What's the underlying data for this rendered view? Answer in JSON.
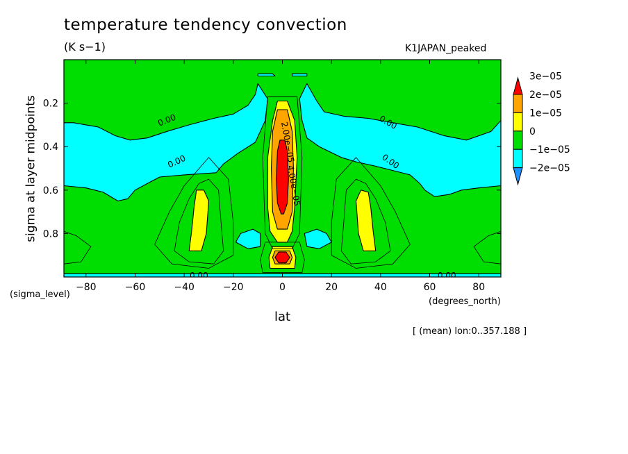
{
  "title": "temperature tendency convection",
  "units": "(K s−1)",
  "run_name": "K1JAPAN_peaked",
  "footer": "[ (mean) lon:0..357.188 ]",
  "chart_data": {
    "type": "heatmap",
    "subtype": "filled-contour",
    "title": "temperature tendency convection",
    "xlabel": "lat",
    "x_unit_label": "(degrees_north)",
    "ylabel": "sigma at layer midpoints",
    "y_unit_label": "(sigma_level)",
    "xlim": [
      -89,
      89
    ],
    "ylim": [
      1.0,
      0.0
    ],
    "y_inverted": true,
    "x_ticks": [
      -80,
      -60,
      -40,
      -20,
      0,
      20,
      40,
      60,
      80
    ],
    "x_tick_labels": [
      "−80",
      "−60",
      "−40",
      "−20",
      "0",
      "20",
      "40",
      "60",
      "80"
    ],
    "y_ticks": [
      0.2,
      0.4,
      0.6,
      0.8
    ],
    "y_tick_labels": [
      "0.2",
      "0.4",
      "0.6",
      "0.8"
    ],
    "colorbar": {
      "levels": [
        -2e-05,
        -1e-05,
        0,
        1e-05,
        2e-05,
        3e-05
      ],
      "labels": [
        "−2e−05",
        "−1e−05",
        "0",
        "1e−05",
        "2e−05",
        "3e−05"
      ],
      "colors": [
        "#1e90ff",
        "#00ffff",
        "#00dd00",
        "#ffff00",
        "#ffa500",
        "#ff0000"
      ],
      "extend": "both"
    },
    "contour_labels": [
      "0.00",
      "0.00",
      "0.00",
      "0.00",
      "0.00",
      "0.00",
      "2.00e−05",
      "4.00e−05"
    ],
    "regions": [
      {
        "name": "background",
        "level": "0 to 1e-05",
        "color": "#00dd00"
      },
      {
        "name": "upper-negative-sh",
        "level": "-1e-05 to 0",
        "lat": [
          -89,
          -8
        ],
        "sigma": [
          0.12,
          0.65
        ]
      },
      {
        "name": "upper-negative-nh",
        "level": "-1e-05 to 0",
        "lat": [
          8,
          89
        ],
        "sigma": [
          0.12,
          0.6
        ]
      },
      {
        "name": "equatorial-positive-column",
        "level": "2e-05 to >3e-05",
        "lat": [
          -6,
          6
        ],
        "sigma": [
          0.2,
          0.85
        ]
      },
      {
        "name": "subtropical-positive-sh",
        "level": "1e-05 to 2e-05",
        "lat": [
          -38,
          -30
        ],
        "sigma": [
          0.6,
          0.88
        ]
      },
      {
        "name": "subtropical-positive-nh",
        "level": "1e-05 to 2e-05",
        "lat": [
          30,
          38
        ],
        "sigma": [
          0.6,
          0.88
        ]
      },
      {
        "name": "near-surface-maximum",
        "level": ">3e-05",
        "lat": [
          -4,
          4
        ],
        "sigma": [
          0.87,
          0.93
        ]
      }
    ]
  }
}
